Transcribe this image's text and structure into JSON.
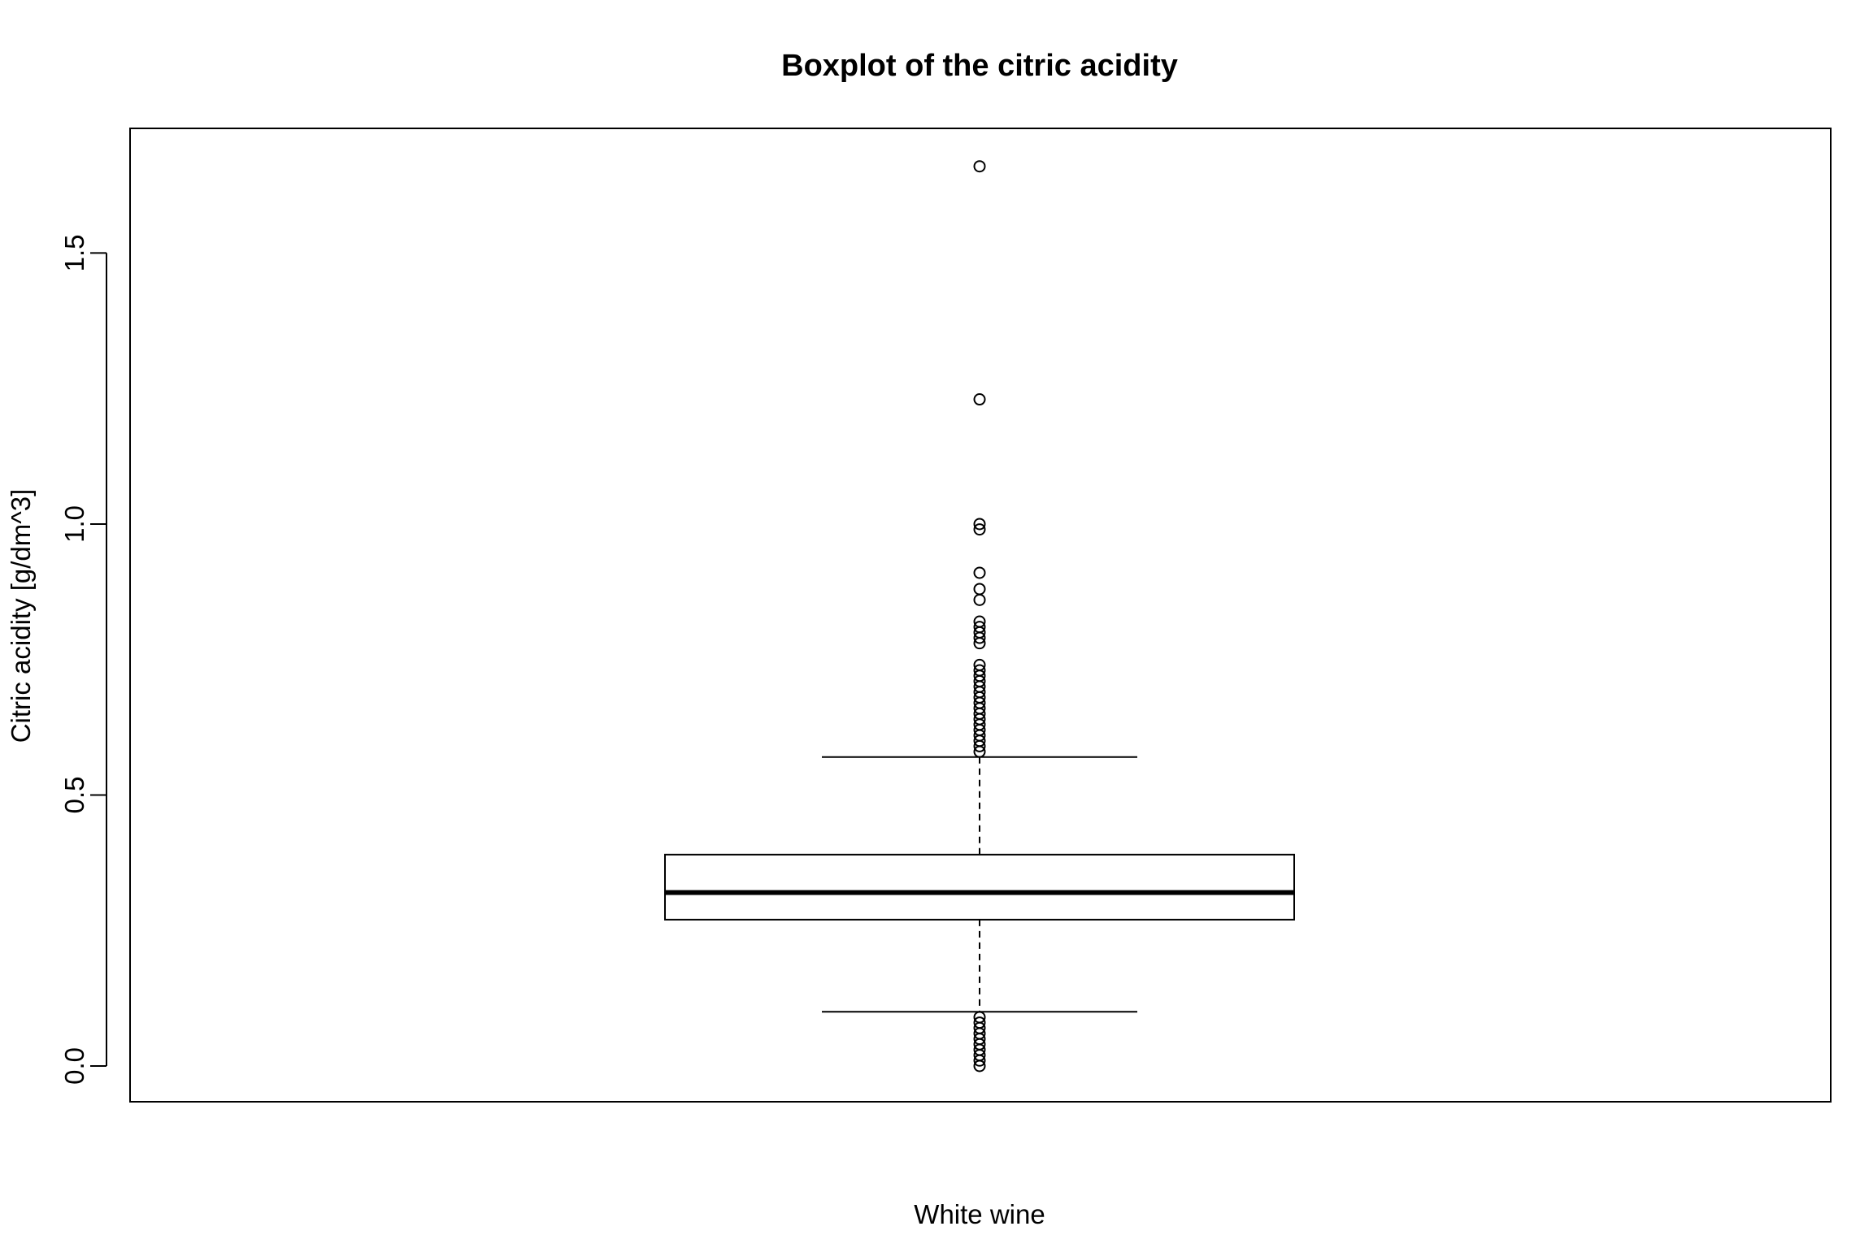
{
  "chart_data": {
    "type": "boxplot",
    "title": "Boxplot of the citric acidity",
    "xlabel": "White wine",
    "ylabel": "Citric acidity [g/dm^3]",
    "ylim": [
      -0.066,
      1.73
    ],
    "y_ticks": [
      0.0,
      0.5,
      1.0,
      1.5
    ],
    "y_tick_labels": [
      "0.0",
      "0.5",
      "1.0",
      "1.5"
    ],
    "grid": false,
    "legend": "none",
    "box": {
      "category": "White wine",
      "whisker_low": 0.1,
      "q1": 0.27,
      "median": 0.32,
      "q3": 0.39,
      "whisker_high": 0.57
    },
    "outliers": [
      0.0,
      0.01,
      0.02,
      0.03,
      0.04,
      0.05,
      0.06,
      0.07,
      0.08,
      0.09,
      0.58,
      0.59,
      0.6,
      0.61,
      0.62,
      0.63,
      0.64,
      0.65,
      0.66,
      0.67,
      0.68,
      0.69,
      0.7,
      0.71,
      0.72,
      0.73,
      0.74,
      0.78,
      0.79,
      0.8,
      0.81,
      0.82,
      0.86,
      0.88,
      0.91,
      0.99,
      1.0,
      1.23,
      1.66
    ],
    "colors": {
      "stroke": "#000000",
      "background": "#ffffff"
    }
  }
}
